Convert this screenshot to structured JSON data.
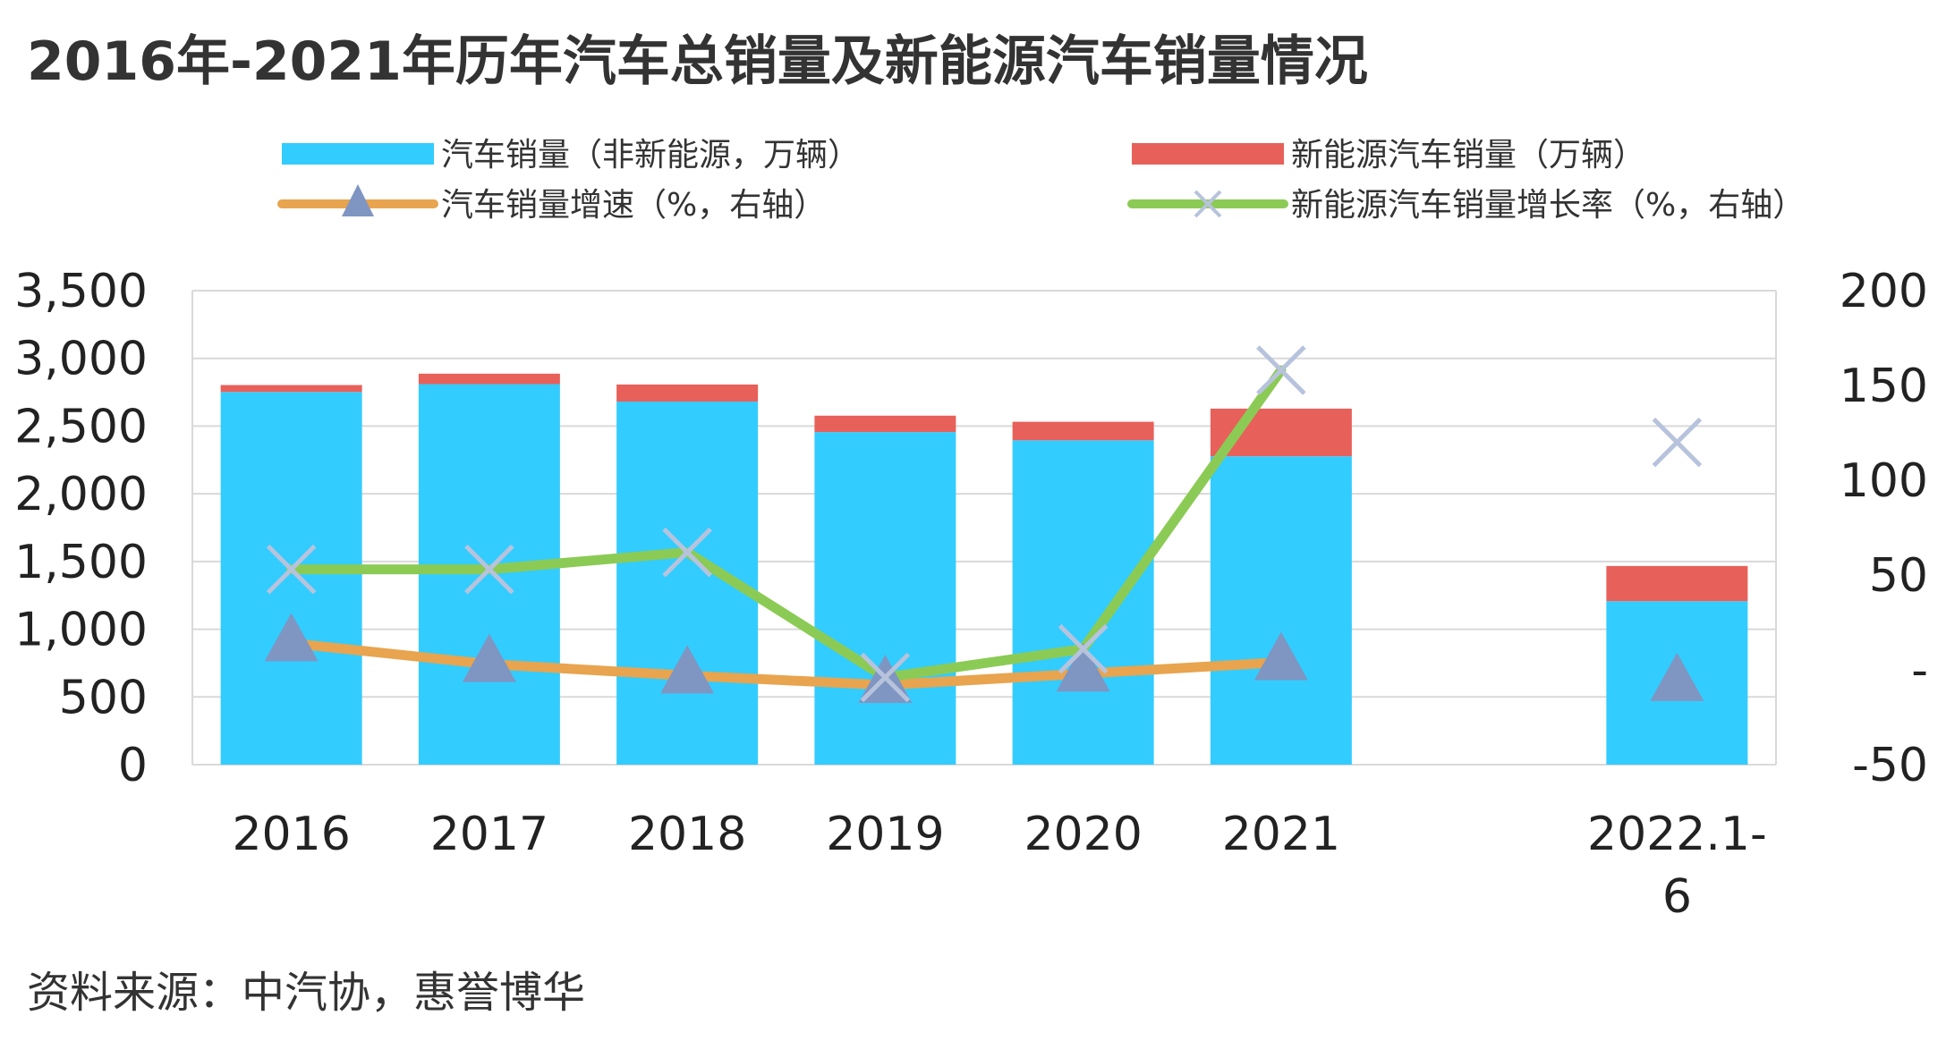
{
  "title": "2016年-2021年历年汽车总销量及新能源汽车销量情况",
  "source": "资料来源：中汽协，惠誉博华",
  "colors": {
    "non_nev_bar": "#33CCFF",
    "nev_bar": "#E8605A",
    "sales_growth_line": "#E8A44E",
    "sales_growth_marker": "#7F95C2",
    "nev_growth_line": "#8BCB55",
    "nev_growth_marker": "#B7C3DC",
    "grid": "#D9D9D9"
  },
  "chart_data": {
    "type": "bar",
    "stacked": true,
    "categories": [
      "2016",
      "2017",
      "2018",
      "2019",
      "2020",
      "2021",
      "",
      "2022.1-\n6"
    ],
    "category_labels": [
      [
        "2016"
      ],
      [
        "2017"
      ],
      [
        "2018"
      ],
      [
        "2019"
      ],
      [
        "2020"
      ],
      [
        "2021"
      ],
      [],
      [
        "2022.1-",
        "6"
      ]
    ],
    "series": [
      {
        "name": "汽车销量（非新能源，万辆）",
        "type": "bar",
        "axis": "left",
        "color_key": "non_nev_bar",
        "values": [
          2752,
          2810,
          2681,
          2456,
          2395,
          2277,
          null,
          1207
        ]
      },
      {
        "name": "新能源汽车销量（万辆）",
        "type": "bar",
        "axis": "left",
        "color_key": "nev_bar",
        "values": [
          51,
          77,
          126,
          121,
          137,
          352,
          null,
          260
        ]
      },
      {
        "name": "汽车销量增速（%，右轴）",
        "type": "line",
        "axis": "right",
        "color_key": "sales_growth_line",
        "marker": "triangle",
        "values": [
          14,
          3,
          -3,
          -8,
          -2,
          4,
          null,
          -7
        ]
      },
      {
        "name": "新能源汽车销量增长率（%，右轴）",
        "type": "line",
        "axis": "right",
        "color_key": "nev_growth_line",
        "marker": "x",
        "values": [
          53,
          53,
          62,
          -4,
          11,
          158,
          null,
          120
        ]
      }
    ],
    "y_left": {
      "min": 0,
      "max": 3500,
      "ticks": [
        "0",
        "500",
        "1,000",
        "1,500",
        "2,000",
        "2,500",
        "3,000",
        "3,500"
      ]
    },
    "y_right": {
      "min": -50,
      "max": 200,
      "ticks": [
        "-50",
        "-",
        "50",
        "100",
        "150",
        "200"
      ]
    },
    "grid": true,
    "legend": "top"
  }
}
